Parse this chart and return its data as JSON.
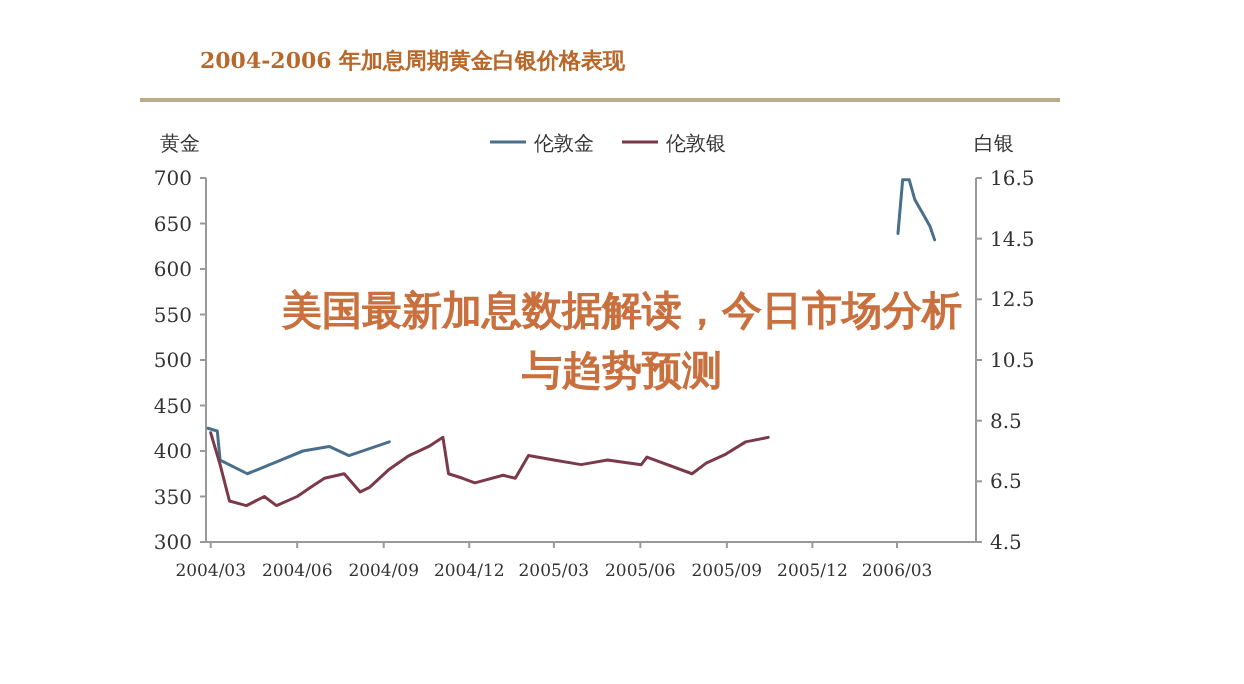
{
  "chart_data": {
    "type": "line",
    "title": "2004-2006 年加息周期黄金白银价格表现",
    "ylabel": "黄金",
    "y2label": "白银",
    "legend": "top",
    "annotations": [
      "美国最新加息数据解读，今日市场分析与趋势预测"
    ],
    "xlim": [
      "2004-02-25",
      "2006-05-24"
    ],
    "xticks": [
      {
        "value": "2004-03",
        "label": "2004/03"
      },
      {
        "value": "2004-06",
        "label": "2004/06"
      },
      {
        "value": "2004-09",
        "label": "2004/09"
      },
      {
        "value": "2004-12",
        "label": "2004/12"
      },
      {
        "value": "2005-03",
        "label": "2005/03"
      },
      {
        "value": "2005-06",
        "label": "2005/06"
      },
      {
        "value": "2005-09",
        "label": "2005/09"
      },
      {
        "value": "2005-12",
        "label": "2005/12"
      },
      {
        "value": "2006-03",
        "label": "2006/03"
      }
    ],
    "ylim": [
      300,
      700
    ],
    "yticks": [
      300,
      350,
      400,
      450,
      500,
      550,
      600,
      650,
      700
    ],
    "y2lim": [
      4.5,
      16.5
    ],
    "y2ticks": [
      4.5,
      6.5,
      8.5,
      10.5,
      12.5,
      14.5,
      16.5
    ],
    "series": [
      {
        "name": "伦敦金",
        "color": "#4a6f8a",
        "x": [
          "2004-02-27",
          "2004-03-08",
          "2004-03-11",
          "2004-04-09",
          "2004-05-10",
          "2004-06-07",
          "2004-07-05",
          "2004-07-26",
          "2004-09-07",
          "2004-09-20",
          "2006-03-02",
          "2006-03-07",
          "2006-03-14",
          "2006-03-20",
          "2006-03-29",
          "2006-04-05",
          "2006-04-10"
        ],
        "values": [
          425,
          422,
          390,
          375,
          388,
          400,
          405,
          395,
          410,
          null,
          639,
          698,
          698,
          676,
          660,
          647,
          632
        ]
      },
      {
        "name": "伦敦银",
        "color": "#7a3a4a",
        "axis": "y2",
        "x": [
          "2004-03-01",
          "2004-03-11",
          "2004-03-21",
          "2004-04-08",
          "2004-04-27",
          "2004-05-10",
          "2004-06-01",
          "2004-06-15",
          "2004-06-30",
          "2004-07-21",
          "2004-08-07",
          "2004-08-17",
          "2004-09-07",
          "2004-09-28",
          "2004-10-19",
          "2004-11-03",
          "2004-11-09",
          "2004-11-24",
          "2004-12-07",
          "2005-01-06",
          "2005-01-19",
          "2005-02-02",
          "2005-03-01",
          "2005-03-30",
          "2005-04-27",
          "2005-06-02",
          "2005-06-08",
          "2005-07-26",
          "2005-08-10",
          "2005-08-31",
          "2005-09-21",
          "2005-10-15"
        ],
        "values": [
          8.1,
          7.05,
          5.85,
          5.7,
          6.0,
          5.7,
          6.0,
          6.3,
          6.6,
          6.75,
          6.15,
          6.3,
          6.9,
          7.35,
          7.65,
          7.95,
          6.75,
          6.6,
          6.45,
          6.7,
          6.6,
          7.35,
          7.2,
          7.05,
          7.2,
          7.05,
          7.3,
          6.75,
          7.1,
          7.4,
          7.8,
          7.95
        ]
      }
    ]
  }
}
